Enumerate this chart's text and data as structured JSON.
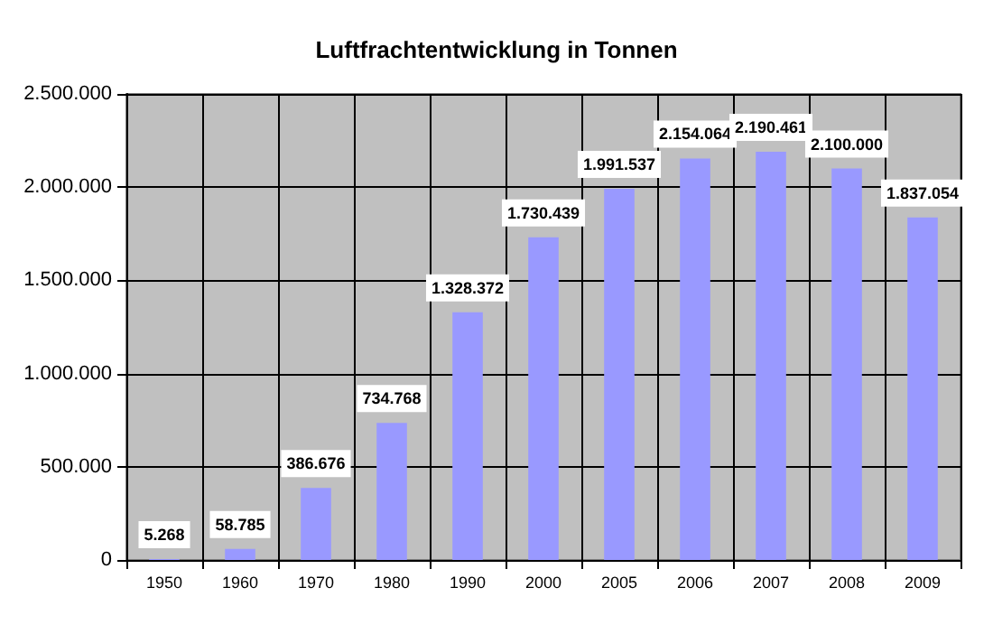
{
  "chart_data": {
    "type": "bar",
    "title": "Luftfrachtentwicklung in Tonnen",
    "categories": [
      "1950",
      "1960",
      "1970",
      "1980",
      "1990",
      "2000",
      "2005",
      "2006",
      "2007",
      "2008",
      "2009"
    ],
    "values": [
      5268,
      58785,
      386676,
      734768,
      1328372,
      1730439,
      1991537,
      2154064,
      2190461,
      2100000,
      1837054
    ],
    "value_labels": [
      "5.268",
      "58.785",
      "386.676",
      "734.768",
      "1.328.372",
      "1.730.439",
      "1.991.537",
      "2.154.064",
      "2.190.461",
      "2.100.000",
      "1.837.054"
    ],
    "color": "#9999ff",
    "ylim": [
      0,
      2500000
    ],
    "yticks": [
      {
        "value": 0,
        "label": "0"
      },
      {
        "value": 500000,
        "label": "500.000"
      },
      {
        "value": 1000000,
        "label": "1.000.000"
      },
      {
        "value": 1500000,
        "label": "1.500.000"
      },
      {
        "value": 2000000,
        "label": "2.000.000"
      },
      {
        "value": 2500000,
        "label": "2.500.000"
      }
    ],
    "grid": true
  }
}
